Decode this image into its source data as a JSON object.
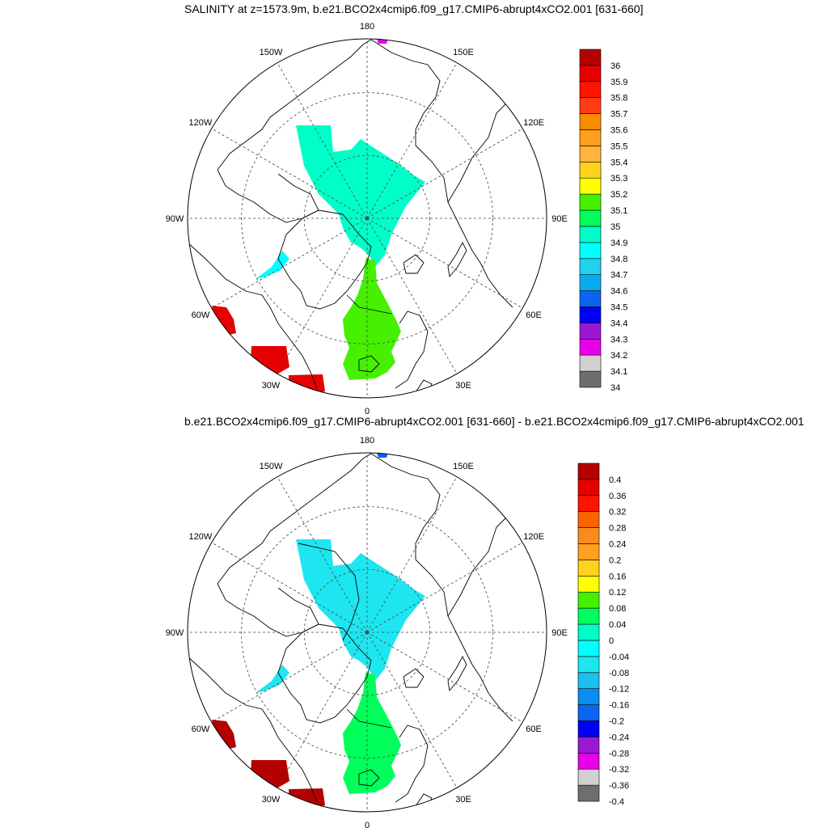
{
  "panels": [
    {
      "title": "SALINITY at z=1573.9m, b.e21.BCO2x4cmip6.f09_g17.CMIP6-abrupt4xCO2.001 [631-660]",
      "lon_labels": [
        "180",
        "150E",
        "120E",
        "90E",
        "60E",
        "30E",
        "0",
        "30W",
        "60W",
        "90W",
        "120W",
        "150W"
      ],
      "colorbar": {
        "levels": [
          "34",
          "34.1",
          "34.2",
          "34.3",
          "34.4",
          "34.5",
          "34.6",
          "34.7",
          "34.8",
          "34.9",
          "35",
          "35.1",
          "35.2",
          "35.3",
          "35.4",
          "35.5",
          "35.6",
          "35.7",
          "35.8",
          "35.9",
          "36"
        ],
        "colors": [
          "#6e6e6e",
          "#d0d0d0",
          "#e800e8",
          "#9a19d0",
          "#0000f5",
          "#0a64f0",
          "#0aaaf0",
          "#1ed2f0",
          "#00ffff",
          "#00ffc8",
          "#00ff5a",
          "#46f000",
          "#ffff00",
          "#ffd21e",
          "#ffb43c",
          "#ffa01e",
          "#fa8c00",
          "#ff3c14",
          "#ff1400",
          "#e60000",
          "#b40000"
        ]
      },
      "fill_legend": {
        "atlantic": "35.1",
        "arctic": "34.9",
        "baffin": "34.8",
        "labrador": "35.9",
        "ne_atlantic": "35.9"
      }
    },
    {
      "title": "b.e21.BCO2x4cmip6.f09_g17.CMIP6-abrupt4xCO2.001 [631-660] - b.e21.BCO2x4cmip6.f09_g17.CMIP6-abrupt4xCO2.001",
      "lon_labels": [
        "180",
        "150E",
        "120E",
        "90E",
        "60E",
        "30E",
        "0",
        "30W",
        "60W",
        "90W",
        "120W",
        "150W"
      ],
      "colorbar": {
        "levels": [
          "-0.4",
          "-0.36",
          "-0.32",
          "-0.28",
          "-0.24",
          "-0.2",
          "-0.16",
          "-0.12",
          "-0.08",
          "-0.04",
          "0",
          "0.04",
          "0.08",
          "0.12",
          "0.16",
          "0.2",
          "0.24",
          "0.28",
          "0.32",
          "0.36",
          "0.4"
        ],
        "colors": [
          "#6e6e6e",
          "#d0d0d0",
          "#e800e8",
          "#9a19d0",
          "#0000f5",
          "#0a64f0",
          "#0a8cf0",
          "#1ebef0",
          "#1ee6f0",
          "#00ffff",
          "#00ffc8",
          "#00ff5a",
          "#46f000",
          "#ffff00",
          "#ffd21e",
          "#ffa01e",
          "#fa8c1e",
          "#fa6400",
          "#ff1400",
          "#e60000",
          "#b40000"
        ]
      },
      "fill_legend": {
        "atlantic": "0.04",
        "arctic": "-0.08",
        "baffin": "-0.08",
        "labrador": "0.4",
        "ne_atlantic": "0.4"
      }
    }
  ]
}
